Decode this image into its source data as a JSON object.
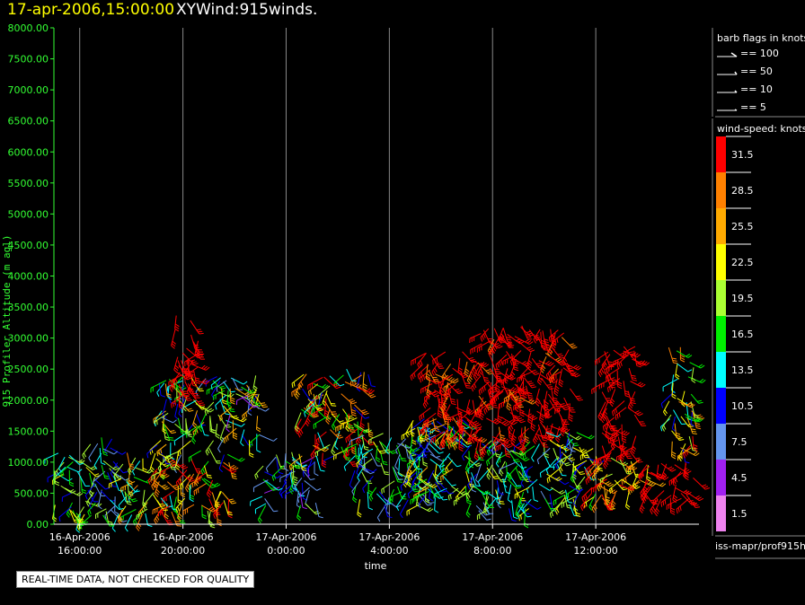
{
  "header": {
    "date_time": "17-apr-2006,15:00:00",
    "product": "XYWind:915winds."
  },
  "notice": "REAL-TIME DATA, NOT CHECKED FOR QUALITY",
  "footer": "iss-mapr/prof915h",
  "colors": {
    "background": "#000000",
    "axis_green": "#33ff33",
    "grid": "#888888"
  },
  "chart_data": {
    "type": "scatter",
    "subtype": "wind-barb time-height",
    "title": "",
    "xlabel": "time",
    "ylabel": "915 Profiler Altitude (m agl)",
    "x_ticks": [
      {
        "line1": "16-Apr-2006",
        "line2": "16:00:00"
      },
      {
        "line1": "16-Apr-2006",
        "line2": "20:00:00"
      },
      {
        "line1": "17-Apr-2006",
        "line2": "0:00:00"
      },
      {
        "line1": "17-Apr-2006",
        "line2": "4:00:00"
      },
      {
        "line1": "17-Apr-2006",
        "line2": "8:00:00"
      },
      {
        "line1": "17-Apr-2006",
        "line2": "12:00:00"
      }
    ],
    "x_tick_hours": [
      16,
      20,
      24,
      28,
      32,
      36
    ],
    "xlim_hours": [
      15,
      40
    ],
    "ylim": [
      0,
      8000
    ],
    "y_ticks": [
      "0.00",
      "500.00",
      "1000.00",
      "1500.00",
      "2000.00",
      "2500.00",
      "3000.00",
      "3500.00",
      "4000.00",
      "4500.00",
      "5000.00",
      "5500.00",
      "6000.00",
      "6500.00",
      "7000.00",
      "7500.00",
      "8000.00"
    ],
    "grid": "vertical lines at x ticks",
    "legend_barbs": {
      "title": "barb flags in knots",
      "items": [
        "== 100",
        "== 50",
        "== 10",
        "== 5"
      ]
    },
    "legend_speed": {
      "title": "wind-speed: knots",
      "bins": [
        {
          "label": "31.5",
          "color": "#ff0000"
        },
        {
          "label": "28.5",
          "color": "#ff8000"
        },
        {
          "label": "25.5",
          "color": "#ffaa00"
        },
        {
          "label": "22.5",
          "color": "#ffff00"
        },
        {
          "label": "19.5",
          "color": "#aaff33"
        },
        {
          "label": "16.5",
          "color": "#00ee00"
        },
        {
          "label": "13.5",
          "color": "#00ffff"
        },
        {
          "label": "10.5",
          "color": "#0000ff"
        },
        {
          "label": "7.5",
          "color": "#6495ed"
        },
        {
          "label": "4.5",
          "color": "#a020f0"
        },
        {
          "label": "1.5",
          "color": "#ee82ee"
        }
      ]
    },
    "observation_groups": [
      {
        "hours": [
          15.0,
          16.4
        ],
        "alt": [
          120,
          1150
        ],
        "speed": [
          10,
          24
        ]
      },
      {
        "hours": [
          16.4,
          17.6
        ],
        "alt": [
          100,
          1400
        ],
        "speed": [
          5,
          20
        ]
      },
      {
        "hours": [
          17.6,
          19.0
        ],
        "alt": [
          150,
          1200
        ],
        "speed": [
          12,
          31
        ]
      },
      {
        "hours": [
          19.0,
          21.8
        ],
        "alt": [
          200,
          1100
        ],
        "speed": [
          14,
          33
        ]
      },
      {
        "hours": [
          19.0,
          21.8
        ],
        "alt": [
          1100,
          2400
        ],
        "speed": [
          8,
          26
        ]
      },
      {
        "hours": [
          19.6,
          20.6
        ],
        "alt": [
          2000,
          3400
        ],
        "speed": [
          30,
          35
        ]
      },
      {
        "hours": [
          21.8,
          23.0
        ],
        "alt": [
          1300,
          2400
        ],
        "speed": [
          5,
          28
        ]
      },
      {
        "hours": [
          23.0,
          25.2
        ],
        "alt": [
          300,
          1200
        ],
        "speed": [
          4,
          20
        ]
      },
      {
        "hours": [
          24.5,
          27.2
        ],
        "alt": [
          1100,
          2500
        ],
        "speed": [
          10,
          34
        ]
      },
      {
        "hours": [
          26.6,
          29.8
        ],
        "alt": [
          300,
          1500
        ],
        "speed": [
          6,
          22
        ]
      },
      {
        "hours": [
          28.6,
          31.0
        ],
        "alt": [
          500,
          1700
        ],
        "speed": [
          10,
          26
        ]
      },
      {
        "hours": [
          29.2,
          31.6
        ],
        "alt": [
          1400,
          2800
        ],
        "speed": [
          29,
          35
        ]
      },
      {
        "hours": [
          31.0,
          34.0
        ],
        "alt": [
          200,
          1400
        ],
        "speed": [
          6,
          22
        ]
      },
      {
        "hours": [
          31.4,
          35.0
        ],
        "alt": [
          1300,
          3200
        ],
        "speed": [
          29,
          36
        ]
      },
      {
        "hours": [
          34.0,
          36.0
        ],
        "alt": [
          300,
          1500
        ],
        "speed": [
          8,
          24
        ]
      },
      {
        "hours": [
          35.8,
          38.2
        ],
        "alt": [
          400,
          1100
        ],
        "speed": [
          20,
          34
        ]
      },
      {
        "hours": [
          36.2,
          37.6
        ],
        "alt": [
          1100,
          2900
        ],
        "speed": [
          30,
          35
        ]
      },
      {
        "hours": [
          37.6,
          39.8
        ],
        "alt": [
          400,
          1000
        ],
        "speed": [
          30,
          35
        ]
      },
      {
        "hours": [
          38.8,
          39.8
        ],
        "alt": [
          1200,
          2900
        ],
        "speed": [
          9,
          33
        ]
      }
    ]
  }
}
